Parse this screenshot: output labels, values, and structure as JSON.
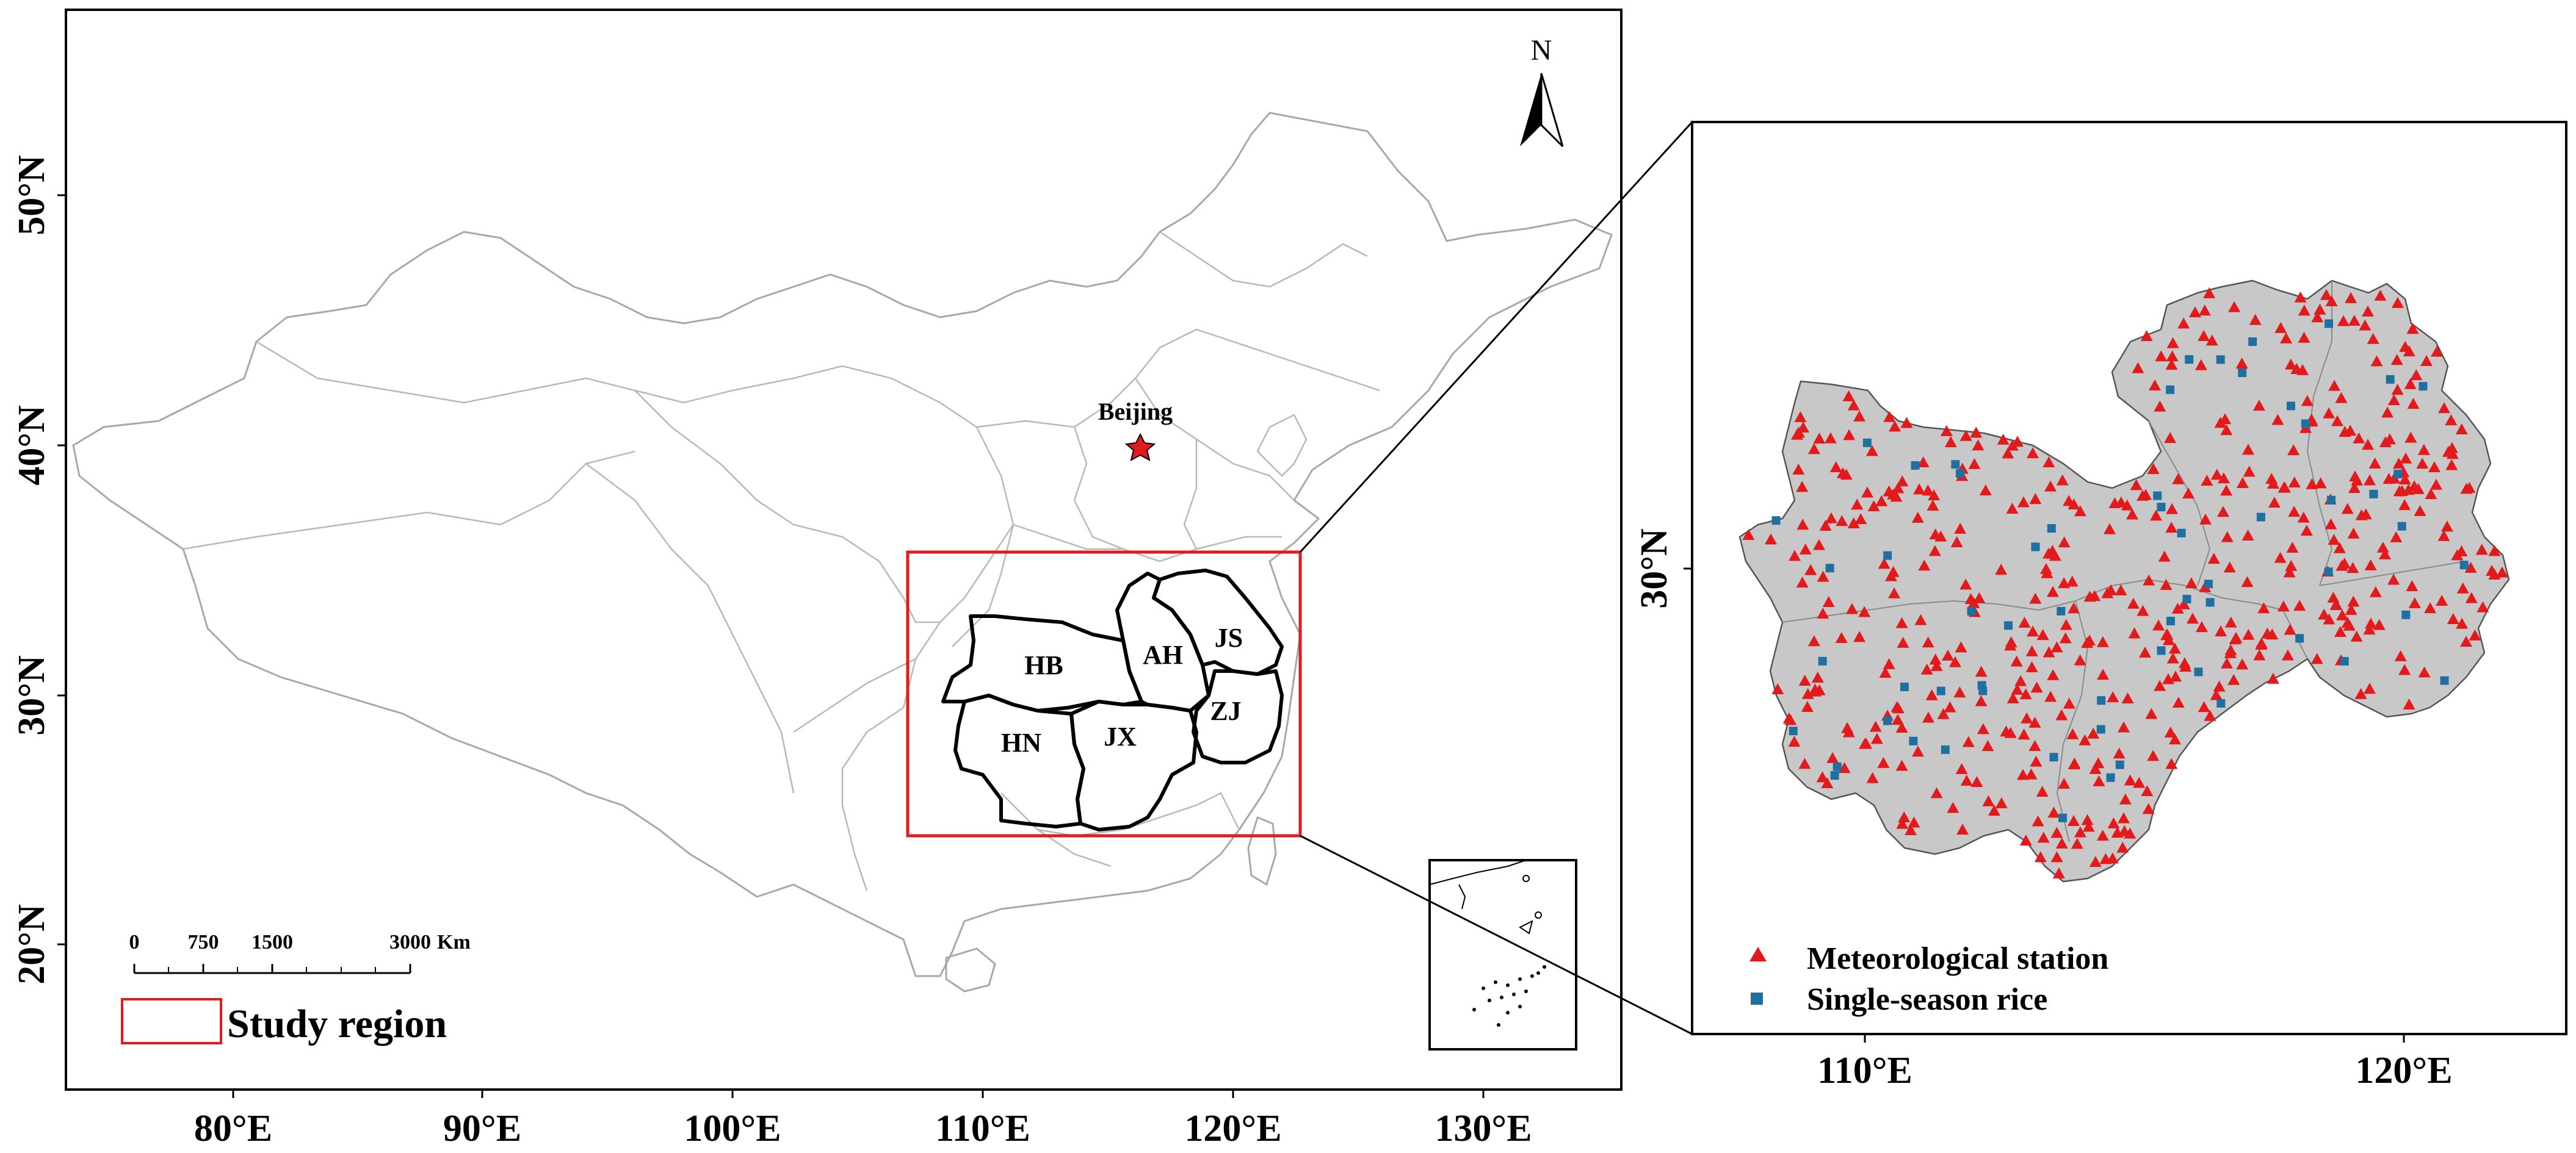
{
  "left_map": {
    "lat_ticks": [
      "50°N",
      "40°N",
      "30°N",
      "20°N"
    ],
    "lon_ticks": [
      "80°E",
      "90°E",
      "100°E",
      "110°E",
      "120°E",
      "130°E"
    ],
    "capital_label": "Beijing",
    "north_label": "N",
    "provinces": [
      "HB",
      "AH",
      "JS",
      "HN",
      "JX",
      "ZJ"
    ],
    "scale_bar": {
      "values": [
        "0",
        "750",
        "1500",
        "3000"
      ],
      "unit": "Km"
    },
    "legend_label": "Study region",
    "colors": {
      "study_box": "#e31a1c",
      "capital_star": "#e31a1c",
      "base_boundaries": "#b0b0b0"
    }
  },
  "inset_map": {
    "lat_ticks": [
      "30°N"
    ],
    "lon_ticks": [
      "110°E",
      "120°E"
    ],
    "legend": [
      {
        "label": "Meteorological station",
        "symbol": "triangle",
        "color": "#e31a1c"
      },
      {
        "label": "Single-season rice",
        "symbol": "square",
        "color": "#1f6fa0"
      }
    ],
    "region_fill": "#c8c8c8"
  }
}
